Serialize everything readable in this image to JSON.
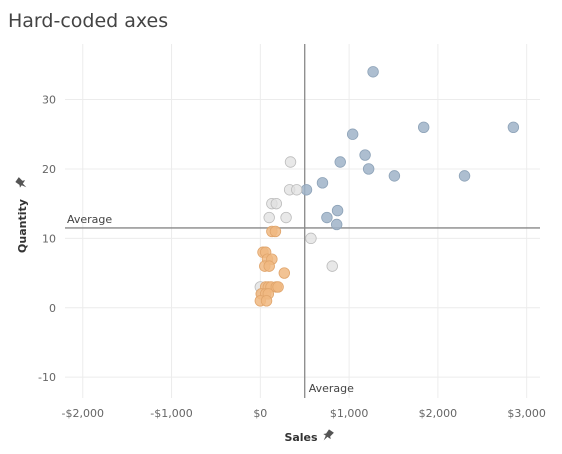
{
  "title": "Hard-coded axes",
  "chart_data": {
    "type": "scatter",
    "title": "Hard-coded axes",
    "xlabel": "Sales",
    "ylabel": "Quantity",
    "xlim": [
      -2200,
      3150
    ],
    "ylim": [
      -13,
      38
    ],
    "x_ticks": [
      {
        "value": -2000,
        "label": "-$2,000"
      },
      {
        "value": -1000,
        "label": "-$1,000"
      },
      {
        "value": 0,
        "label": "$0"
      },
      {
        "value": 1000,
        "label": "$1,000"
      },
      {
        "value": 2000,
        "label": "$2,000"
      },
      {
        "value": 3000,
        "label": "$3,000"
      }
    ],
    "y_ticks": [
      {
        "value": 30,
        "label": "30"
      },
      {
        "value": 20,
        "label": "20"
      },
      {
        "value": 10,
        "label": "10"
      },
      {
        "value": 0,
        "label": "0"
      },
      {
        "value": -10,
        "label": "-10"
      }
    ],
    "reference_lines": {
      "x": {
        "value": 500,
        "label": "Average"
      },
      "y": {
        "value": 11.5,
        "label": "Average"
      }
    },
    "colors": {
      "high": "#9fb3c8",
      "mid": "#e0e0e0",
      "low": "#f0b981",
      "axis_line": "#888888",
      "grid_line": "#ececec"
    },
    "points": [
      {
        "x": 1270,
        "y": 34,
        "group": "high"
      },
      {
        "x": 1040,
        "y": 25,
        "group": "high"
      },
      {
        "x": 1840,
        "y": 26,
        "group": "high"
      },
      {
        "x": 2850,
        "y": 26,
        "group": "high"
      },
      {
        "x": 1180,
        "y": 22,
        "group": "high"
      },
      {
        "x": 900,
        "y": 21,
        "group": "high"
      },
      {
        "x": 1220,
        "y": 20,
        "group": "high"
      },
      {
        "x": 1510,
        "y": 19,
        "group": "high"
      },
      {
        "x": 2300,
        "y": 19,
        "group": "high"
      },
      {
        "x": 700,
        "y": 18,
        "group": "high"
      },
      {
        "x": 520,
        "y": 17,
        "group": "high"
      },
      {
        "x": 870,
        "y": 14,
        "group": "high"
      },
      {
        "x": 750,
        "y": 13,
        "group": "high"
      },
      {
        "x": 860,
        "y": 12,
        "group": "high"
      },
      {
        "x": 340,
        "y": 21,
        "group": "mid"
      },
      {
        "x": 330,
        "y": 17,
        "group": "mid"
      },
      {
        "x": 410,
        "y": 17,
        "group": "mid"
      },
      {
        "x": 130,
        "y": 15,
        "group": "mid"
      },
      {
        "x": 180,
        "y": 15,
        "group": "mid"
      },
      {
        "x": 100,
        "y": 13,
        "group": "mid"
      },
      {
        "x": 290,
        "y": 13,
        "group": "mid"
      },
      {
        "x": 570,
        "y": 10,
        "group": "mid"
      },
      {
        "x": 810,
        "y": 6,
        "group": "mid"
      },
      {
        "x": 0,
        "y": 3,
        "group": "mid"
      },
      {
        "x": 20,
        "y": 2,
        "group": "mid"
      },
      {
        "x": 130,
        "y": 11,
        "group": "low"
      },
      {
        "x": 170,
        "y": 11,
        "group": "low"
      },
      {
        "x": 30,
        "y": 8,
        "group": "low"
      },
      {
        "x": 60,
        "y": 8,
        "group": "low"
      },
      {
        "x": 80,
        "y": 7,
        "group": "low"
      },
      {
        "x": 130,
        "y": 7,
        "group": "low"
      },
      {
        "x": 50,
        "y": 6,
        "group": "low"
      },
      {
        "x": 100,
        "y": 6,
        "group": "low"
      },
      {
        "x": 270,
        "y": 5,
        "group": "low"
      },
      {
        "x": 60,
        "y": 3,
        "group": "low"
      },
      {
        "x": 90,
        "y": 3,
        "group": "low"
      },
      {
        "x": 120,
        "y": 3,
        "group": "low"
      },
      {
        "x": 180,
        "y": 3,
        "group": "low"
      },
      {
        "x": 200,
        "y": 3,
        "group": "low"
      },
      {
        "x": 10,
        "y": 2,
        "group": "low"
      },
      {
        "x": 60,
        "y": 2,
        "group": "low"
      },
      {
        "x": 90,
        "y": 2,
        "group": "low"
      },
      {
        "x": 0,
        "y": 1,
        "group": "low"
      },
      {
        "x": 70,
        "y": 1,
        "group": "low"
      }
    ]
  }
}
